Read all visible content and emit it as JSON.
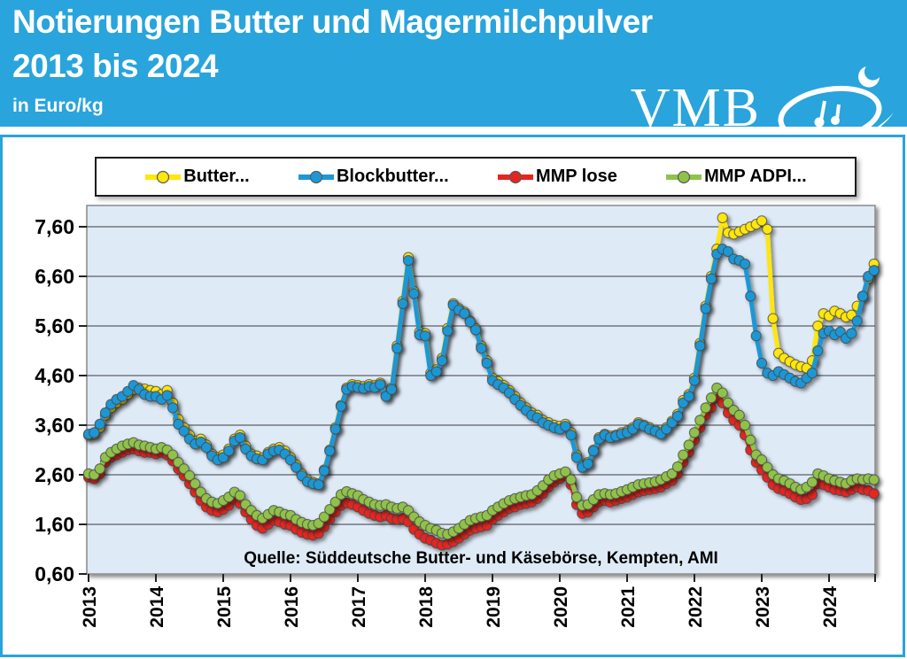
{
  "header": {
    "title_line1": "Notierungen Butter und Magermilchpulver",
    "title_line2": "2013 bis 2024",
    "subtitle": "in Euro/kg",
    "logo_text": "VMB",
    "band_color": "#29a4dc"
  },
  "source_note": "Quelle: Süddeutsche Butter- und Käsebörse, Kempten, AMI",
  "chart_data": {
    "type": "line",
    "title": "Notierungen Butter und Magermilchpulver 2013 bis 2024",
    "unit": "Euro/kg",
    "grid": "horizontal",
    "plot_bg": "#dfeaf7",
    "grid_color": "#3c3c3c",
    "frame_color": "#8a8a8a",
    "x_axis": {
      "start_year": 2013,
      "interval": "monthly",
      "tick_labels": [
        "2013",
        "2014",
        "2015",
        "2016",
        "2017",
        "2018",
        "2019",
        "2020",
        "2021",
        "2022",
        "2023",
        "2024"
      ]
    },
    "y_axis": {
      "min": 0.6,
      "max": 8.05,
      "tick_step": 1.0,
      "ticks": [
        {
          "value": 7.6,
          "label": "7,60"
        },
        {
          "value": 6.6,
          "label": "6,60"
        },
        {
          "value": 5.6,
          "label": "5,60"
        },
        {
          "value": 4.6,
          "label": "4,60"
        },
        {
          "value": 3.6,
          "label": "3,60"
        },
        {
          "value": 2.6,
          "label": "2,60"
        },
        {
          "value": 1.6,
          "label": "1,60"
        },
        {
          "value": 0.6,
          "label": "0,60"
        }
      ]
    },
    "legend_position": "top",
    "series": [
      {
        "id": "butter",
        "label": "Butter...",
        "color": "#ffe60d",
        "values": [
          3.4,
          3.42,
          3.55,
          3.8,
          3.95,
          4.05,
          4.12,
          4.22,
          4.32,
          4.35,
          4.33,
          4.3,
          4.28,
          4.22,
          4.3,
          4.05,
          3.72,
          3.55,
          3.4,
          3.28,
          3.32,
          3.2,
          3.02,
          2.95,
          3.0,
          3.12,
          3.32,
          3.4,
          3.18,
          3.02,
          2.98,
          2.94,
          3.05,
          3.12,
          3.15,
          3.08,
          2.95,
          2.8,
          2.62,
          2.5,
          2.45,
          2.42,
          2.7,
          3.1,
          3.55,
          4.0,
          4.35,
          4.42,
          4.4,
          4.38,
          4.42,
          4.4,
          4.45,
          4.2,
          4.35,
          5.2,
          6.1,
          6.98,
          6.3,
          5.48,
          5.45,
          4.65,
          4.72,
          4.95,
          5.55,
          6.05,
          5.95,
          5.88,
          5.7,
          5.55,
          5.2,
          4.9,
          4.55,
          4.48,
          4.4,
          4.3,
          4.18,
          4.05,
          3.95,
          3.85,
          3.8,
          3.7,
          3.65,
          3.6,
          3.58,
          3.62,
          3.45,
          3.0,
          2.78,
          2.85,
          3.1,
          3.35,
          3.42,
          3.38,
          3.4,
          3.45,
          3.48,
          3.55,
          3.65,
          3.6,
          3.55,
          3.5,
          3.45,
          3.55,
          3.68,
          3.82,
          4.1,
          4.22,
          4.55,
          5.25,
          6.0,
          6.6,
          7.15,
          7.78,
          7.48,
          7.45,
          7.5,
          7.55,
          7.6,
          7.65,
          7.72,
          7.55,
          5.75,
          5.05,
          4.95,
          4.88,
          4.82,
          4.78,
          4.75,
          4.9,
          5.6,
          5.85,
          5.8,
          5.9,
          5.85,
          5.78,
          5.82,
          6.0,
          6.2,
          6.55,
          6.85
        ]
      },
      {
        "id": "blockbutter",
        "label": "Blockbutter...",
        "color": "#1f97d5",
        "values": [
          3.42,
          3.45,
          3.62,
          3.85,
          4.02,
          4.12,
          4.18,
          4.28,
          4.4,
          4.32,
          4.22,
          4.18,
          4.18,
          4.12,
          4.2,
          3.95,
          3.62,
          3.48,
          3.32,
          3.22,
          3.26,
          3.15,
          2.98,
          2.9,
          2.95,
          3.08,
          3.28,
          3.35,
          3.12,
          2.98,
          2.92,
          2.9,
          3.02,
          3.08,
          3.1,
          3.02,
          2.9,
          2.75,
          2.58,
          2.46,
          2.42,
          2.4,
          2.68,
          3.08,
          3.52,
          3.98,
          4.32,
          4.38,
          4.36,
          4.34,
          4.38,
          4.36,
          4.42,
          4.18,
          4.32,
          5.15,
          6.05,
          6.92,
          6.25,
          5.42,
          5.4,
          4.6,
          4.68,
          4.9,
          5.5,
          6.02,
          5.92,
          5.85,
          5.68,
          5.52,
          5.15,
          4.85,
          4.5,
          4.42,
          4.35,
          4.25,
          4.12,
          4.0,
          3.9,
          3.8,
          3.75,
          3.65,
          3.6,
          3.55,
          3.52,
          3.58,
          3.4,
          2.95,
          2.75,
          2.82,
          3.08,
          3.32,
          3.4,
          3.35,
          3.38,
          3.42,
          3.45,
          3.52,
          3.62,
          3.58,
          3.52,
          3.48,
          3.42,
          3.52,
          3.65,
          3.78,
          4.05,
          4.18,
          4.5,
          5.2,
          5.95,
          6.55,
          7.05,
          7.15,
          7.1,
          6.95,
          6.92,
          6.85,
          6.2,
          5.4,
          4.85,
          4.65,
          4.6,
          4.68,
          4.62,
          4.55,
          4.48,
          4.45,
          4.55,
          4.65,
          5.1,
          5.45,
          5.5,
          5.42,
          5.48,
          5.35,
          5.45,
          5.7,
          6.2,
          6.6,
          6.72
        ]
      },
      {
        "id": "mmp-lose",
        "label": "MMP lose",
        "color": "#e52620",
        "values": [
          2.55,
          2.52,
          2.62,
          2.85,
          2.95,
          3.0,
          3.05,
          3.1,
          3.12,
          3.08,
          3.05,
          3.05,
          3.02,
          3.05,
          3.0,
          2.88,
          2.72,
          2.58,
          2.42,
          2.25,
          2.08,
          1.95,
          1.88,
          1.85,
          1.9,
          1.98,
          2.1,
          2.02,
          1.85,
          1.7,
          1.58,
          1.52,
          1.6,
          1.68,
          1.65,
          1.6,
          1.58,
          1.5,
          1.44,
          1.4,
          1.38,
          1.42,
          1.55,
          1.7,
          1.85,
          1.98,
          2.03,
          2.0,
          1.95,
          1.88,
          1.82,
          1.78,
          1.75,
          1.78,
          1.72,
          1.7,
          1.72,
          1.65,
          1.5,
          1.4,
          1.32,
          1.28,
          1.22,
          1.18,
          1.2,
          1.25,
          1.32,
          1.4,
          1.48,
          1.52,
          1.55,
          1.58,
          1.7,
          1.78,
          1.85,
          1.92,
          1.95,
          2.0,
          2.02,
          2.05,
          2.12,
          2.22,
          2.35,
          2.45,
          2.52,
          2.58,
          2.4,
          2.0,
          1.82,
          1.85,
          1.95,
          2.05,
          2.08,
          2.05,
          2.08,
          2.12,
          2.15,
          2.2,
          2.25,
          2.28,
          2.3,
          2.32,
          2.35,
          2.42,
          2.48,
          2.62,
          2.85,
          3.05,
          3.3,
          3.55,
          3.8,
          3.95,
          4.15,
          4.05,
          3.85,
          3.7,
          3.6,
          3.4,
          3.1,
          2.85,
          2.7,
          2.55,
          2.4,
          2.32,
          2.28,
          2.22,
          2.15,
          2.1,
          2.12,
          2.2,
          2.42,
          2.4,
          2.35,
          2.3,
          2.28,
          2.25,
          2.3,
          2.35,
          2.3,
          2.28,
          2.22
        ]
      },
      {
        "id": "mmp-adpi",
        "label": "MMP ADPI...",
        "color": "#90c24a",
        "values": [
          2.62,
          2.6,
          2.72,
          2.95,
          3.05,
          3.12,
          3.18,
          3.22,
          3.25,
          3.2,
          3.18,
          3.15,
          3.12,
          3.15,
          3.1,
          3.0,
          2.85,
          2.72,
          2.58,
          2.42,
          2.25,
          2.12,
          2.05,
          2.02,
          2.08,
          2.15,
          2.25,
          2.18,
          2.0,
          1.88,
          1.78,
          1.72,
          1.8,
          1.88,
          1.85,
          1.8,
          1.78,
          1.7,
          1.64,
          1.6,
          1.58,
          1.62,
          1.75,
          1.9,
          2.05,
          2.2,
          2.26,
          2.22,
          2.18,
          2.1,
          2.05,
          2.0,
          1.98,
          2.0,
          1.95,
          1.92,
          1.95,
          1.88,
          1.75,
          1.65,
          1.58,
          1.52,
          1.48,
          1.42,
          1.4,
          1.45,
          1.52,
          1.6,
          1.68,
          1.72,
          1.75,
          1.78,
          1.88,
          1.95,
          2.02,
          2.08,
          2.12,
          2.15,
          2.18,
          2.2,
          2.28,
          2.38,
          2.5,
          2.58,
          2.62,
          2.66,
          2.5,
          2.15,
          1.98,
          2.0,
          2.1,
          2.2,
          2.22,
          2.2,
          2.22,
          2.26,
          2.3,
          2.35,
          2.4,
          2.42,
          2.44,
          2.46,
          2.5,
          2.56,
          2.62,
          2.76,
          3.0,
          3.2,
          3.45,
          3.7,
          3.95,
          4.15,
          4.35,
          4.25,
          4.05,
          3.9,
          3.8,
          3.6,
          3.3,
          3.0,
          2.9,
          2.75,
          2.6,
          2.52,
          2.48,
          2.42,
          2.35,
          2.3,
          2.35,
          2.45,
          2.62,
          2.58,
          2.52,
          2.48,
          2.45,
          2.42,
          2.48,
          2.52,
          2.5,
          2.52,
          2.5
        ]
      }
    ]
  }
}
